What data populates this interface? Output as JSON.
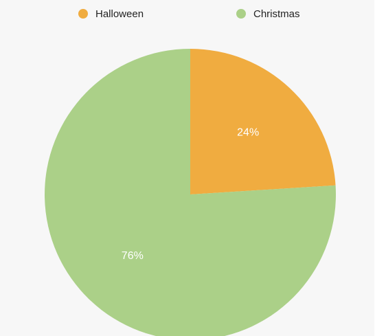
{
  "chart_data": {
    "type": "pie",
    "title": "",
    "legend_position": "top",
    "slices": [
      {
        "label": "Halloween",
        "value": 24,
        "display": "24%",
        "color": "#f0ac40"
      },
      {
        "label": "Christmas",
        "value": 76,
        "display": "76%",
        "color": "#abd088"
      }
    ]
  }
}
